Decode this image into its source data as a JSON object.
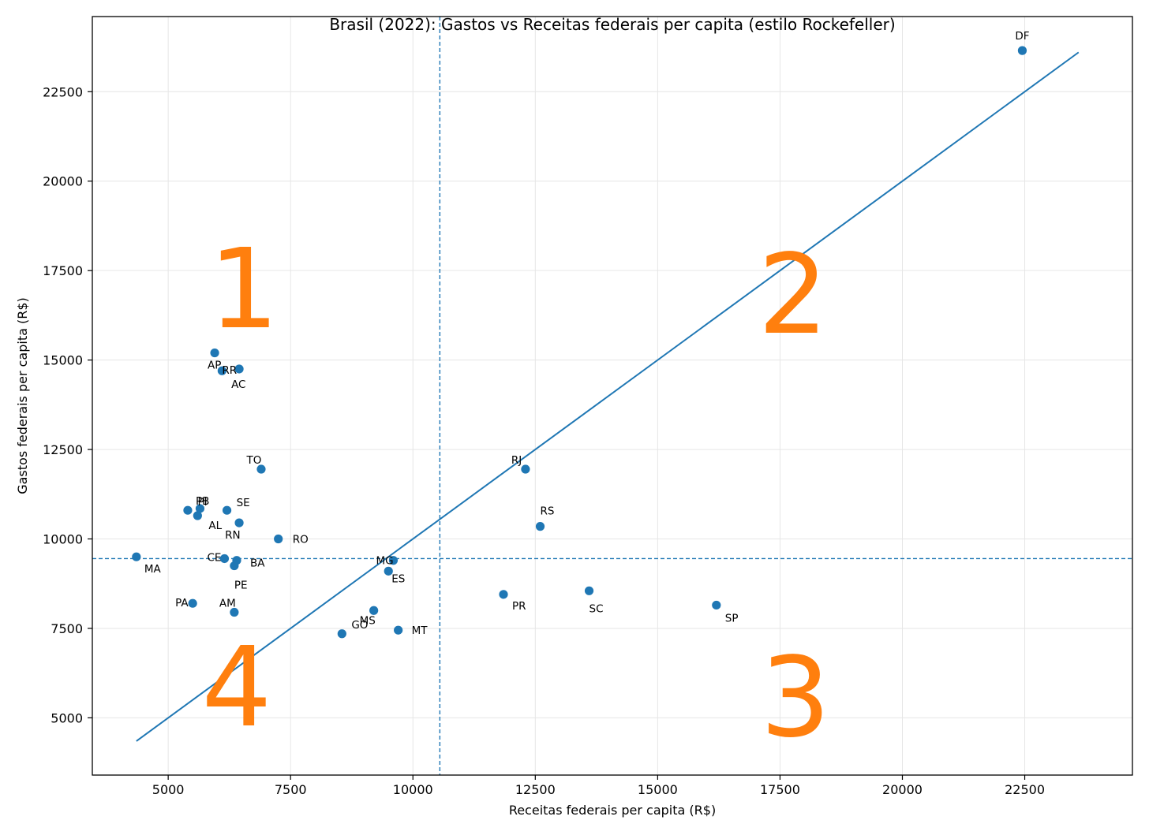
{
  "chart_data": {
    "type": "scatter",
    "title": "Brasil (2022): Gastos vs Receitas federais per capita (estilo Rockefeller)",
    "xlabel": "Receitas federais per capita (R$)",
    "ylabel": "Gastos federais per capita (R$)",
    "xlim": [
      3450,
      24700
    ],
    "ylim": [
      3400,
      24600
    ],
    "xticks": [
      5000,
      7500,
      10000,
      12500,
      15000,
      17500,
      20000,
      22500
    ],
    "yticks": [
      5000,
      7500,
      10000,
      12500,
      15000,
      17500,
      20000,
      22500
    ],
    "grid": true,
    "colors": {
      "points": "#1f77b4",
      "line": "#1f77b4",
      "quadrant_labels": "#ff7f0e",
      "grid": "#e6e6e6"
    },
    "points": [
      {
        "label": "DF",
        "x": 22450,
        "y": 23650
      },
      {
        "label": "AP",
        "x": 5950,
        "y": 15200
      },
      {
        "label": "AC",
        "x": 6450,
        "y": 14750
      },
      {
        "label": "RR",
        "x": 6100,
        "y": 14700
      },
      {
        "label": "TO",
        "x": 6900,
        "y": 11950
      },
      {
        "label": "PI",
        "x": 5650,
        "y": 10850
      },
      {
        "label": "PB",
        "x": 5400,
        "y": 10800
      },
      {
        "label": "SE",
        "x": 6200,
        "y": 10800
      },
      {
        "label": "AL",
        "x": 5600,
        "y": 10650
      },
      {
        "label": "RN",
        "x": 6450,
        "y": 10450
      },
      {
        "label": "RO",
        "x": 7250,
        "y": 10000
      },
      {
        "label": "MA",
        "x": 4350,
        "y": 9500
      },
      {
        "label": "CE",
        "x": 6150,
        "y": 9450
      },
      {
        "label": "BA",
        "x": 6400,
        "y": 9400
      },
      {
        "label": "PE",
        "x": 6350,
        "y": 9250
      },
      {
        "label": "PA",
        "x": 5500,
        "y": 8200
      },
      {
        "label": "AM",
        "x": 6350,
        "y": 7950
      },
      {
        "label": "GO",
        "x": 8550,
        "y": 7350
      },
      {
        "label": "MS",
        "x": 9200,
        "y": 8000
      },
      {
        "label": "MT",
        "x": 9700,
        "y": 7450
      },
      {
        "label": "MG",
        "x": 9600,
        "y": 9400
      },
      {
        "label": "ES",
        "x": 9500,
        "y": 9100
      },
      {
        "label": "RJ",
        "x": 12300,
        "y": 11950
      },
      {
        "label": "RS",
        "x": 12600,
        "y": 10350
      },
      {
        "label": "PR",
        "x": 11850,
        "y": 8450
      },
      {
        "label": "SC",
        "x": 13600,
        "y": 8550
      },
      {
        "label": "SP",
        "x": 16200,
        "y": 8150
      }
    ],
    "reference_line": {
      "x": [
        4350,
        23600
      ],
      "y": [
        4350,
        23600
      ]
    },
    "mean_lines": {
      "x": 10550,
      "y": 9450
    },
    "quadrant_labels": [
      "1",
      "2",
      "3",
      "4"
    ]
  }
}
